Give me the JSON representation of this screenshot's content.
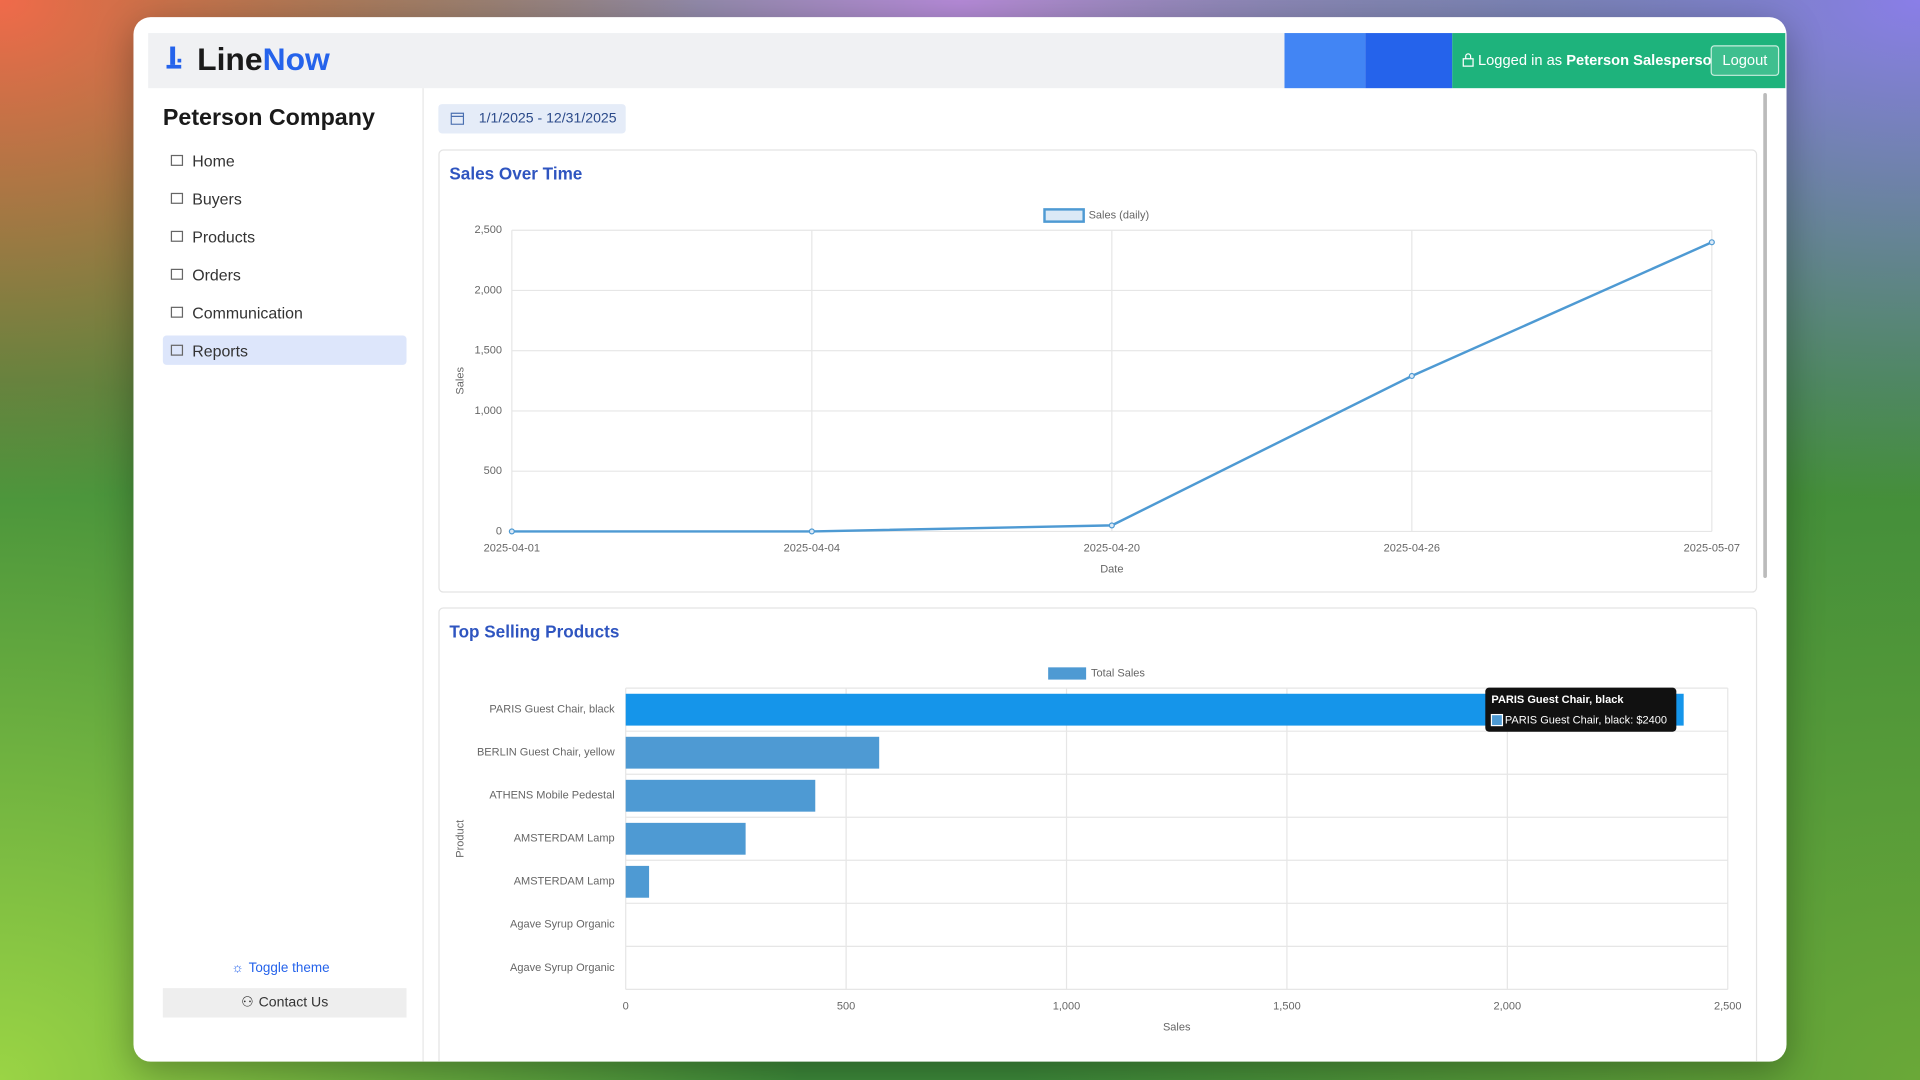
{
  "app": {
    "header": {
      "logo_first": "Line",
      "logo_second": "Now",
      "logged_in_prefix": "Logged in as",
      "user": "Peterson Salesperson",
      "logout": "Logout"
    },
    "sidebar": {
      "company": "Peterson Company",
      "nav": [
        "Home",
        "Buyers",
        "Products",
        "Orders",
        "Communication",
        "Reports"
      ],
      "active": "Reports",
      "toggle_theme": "Toggle theme",
      "contact": "Contact Us"
    },
    "date_range": "1/1/2025 - 12/31/2025"
  },
  "chart_data": [
    {
      "type": "line",
      "title": "Sales Over Time",
      "x": [
        "2025-04-01",
        "2025-04-04",
        "2025-04-20",
        "2025-04-26",
        "2025-05-07"
      ],
      "series": [
        {
          "name": "Sales (daily)",
          "color": "#4e9ad3",
          "values": [
            0,
            0,
            50,
            1290,
            2400
          ]
        }
      ],
      "ylim": [
        0,
        2500
      ],
      "yticks": [
        0,
        500,
        {
          "value": 1000,
          "label": "1,000"
        },
        {
          "value": 1500,
          "label": "1,500"
        },
        {
          "value": 2000,
          "label": "2,000"
        },
        {
          "value": 2500,
          "label": "2,500"
        }
      ],
      "x_label": "Date",
      "y_label": "Sales",
      "grid": true,
      "legend": "top"
    },
    {
      "type": "hbar",
      "title": "Top Selling Products",
      "categories": [
        "PARIS Guest Chair, black",
        "BERLIN Guest Chair, yellow",
        "ATHENS Mobile Pedestal",
        "AMSTERDAM Lamp",
        "AMSTERDAM Lamp",
        "Agave Syrup Organic",
        "Agave Syrup Organic"
      ],
      "series": [
        {
          "name": "Total Sales",
          "color": "#4e9ad3",
          "values": [
            2400,
            575,
            430,
            272,
            53,
            0,
            0
          ]
        }
      ],
      "xlim": [
        0,
        2500
      ],
      "xticks": [
        0,
        500,
        {
          "value": 1000,
          "label": "1,000"
        },
        {
          "value": 1500,
          "label": "1,500"
        },
        {
          "value": 2000,
          "label": "2,000"
        },
        {
          "value": 2500,
          "label": "2,500"
        }
      ],
      "x_label": "Sales",
      "y_label": "Product",
      "grid": true,
      "legend": "top",
      "tooltip": {
        "index": 0,
        "color": "#1595ea",
        "title": "PARIS Guest Chair, black",
        "label": "PARIS Guest Chair, black: $2400"
      }
    }
  ]
}
